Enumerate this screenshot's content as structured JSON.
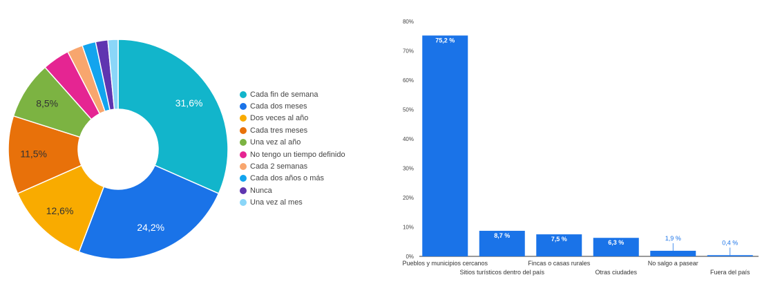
{
  "chart_data": [
    {
      "type": "pie",
      "categories": [
        "Cada fin de semana",
        "Cada dos meses",
        "Dos veces al año",
        "Cada tres meses",
        "Una vez al año",
        "No tengo un tiempo definido",
        "Cada 2 semanas",
        "Cada dos años o más",
        "Nunca",
        "Una vez al mes"
      ],
      "values": [
        31.6,
        24.2,
        12.6,
        11.5,
        8.5,
        4.0,
        2.3,
        2.0,
        1.8,
        1.5
      ],
      "value_labels": [
        "31,6%",
        "24,2%",
        "12,6%",
        "11,5%",
        "8,5%",
        "",
        "",
        "",
        "",
        ""
      ],
      "colors": [
        "#12b5cb",
        "#1a73e8",
        "#f9ab00",
        "#e8710a",
        "#7cb342",
        "#e52592",
        "#f8a66e",
        "#12a4ee",
        "#5f35b0",
        "#8ad6f8"
      ],
      "legend_position": "right"
    },
    {
      "type": "bar",
      "categories": [
        "Pueblos y municipios cercanos",
        "Sitios turísticos dentro del país",
        "Fincas o casas rurales",
        "Otras ciudades",
        "No salgo a pasear",
        "Fuera del país"
      ],
      "values": [
        75.2,
        8.7,
        7.5,
        6.3,
        1.9,
        0.4
      ],
      "value_labels": [
        "75,2 %",
        "8,7 %",
        "7,5 %",
        "6,3 %",
        "1,9 %",
        "0,4 %"
      ],
      "y_ticks": [
        "0%",
        "10%",
        "20%",
        "30%",
        "40%",
        "50%",
        "60%",
        "70%",
        "80%"
      ],
      "ylim": [
        0,
        80
      ],
      "grid": false,
      "bar_color": "#1a73e8"
    }
  ]
}
